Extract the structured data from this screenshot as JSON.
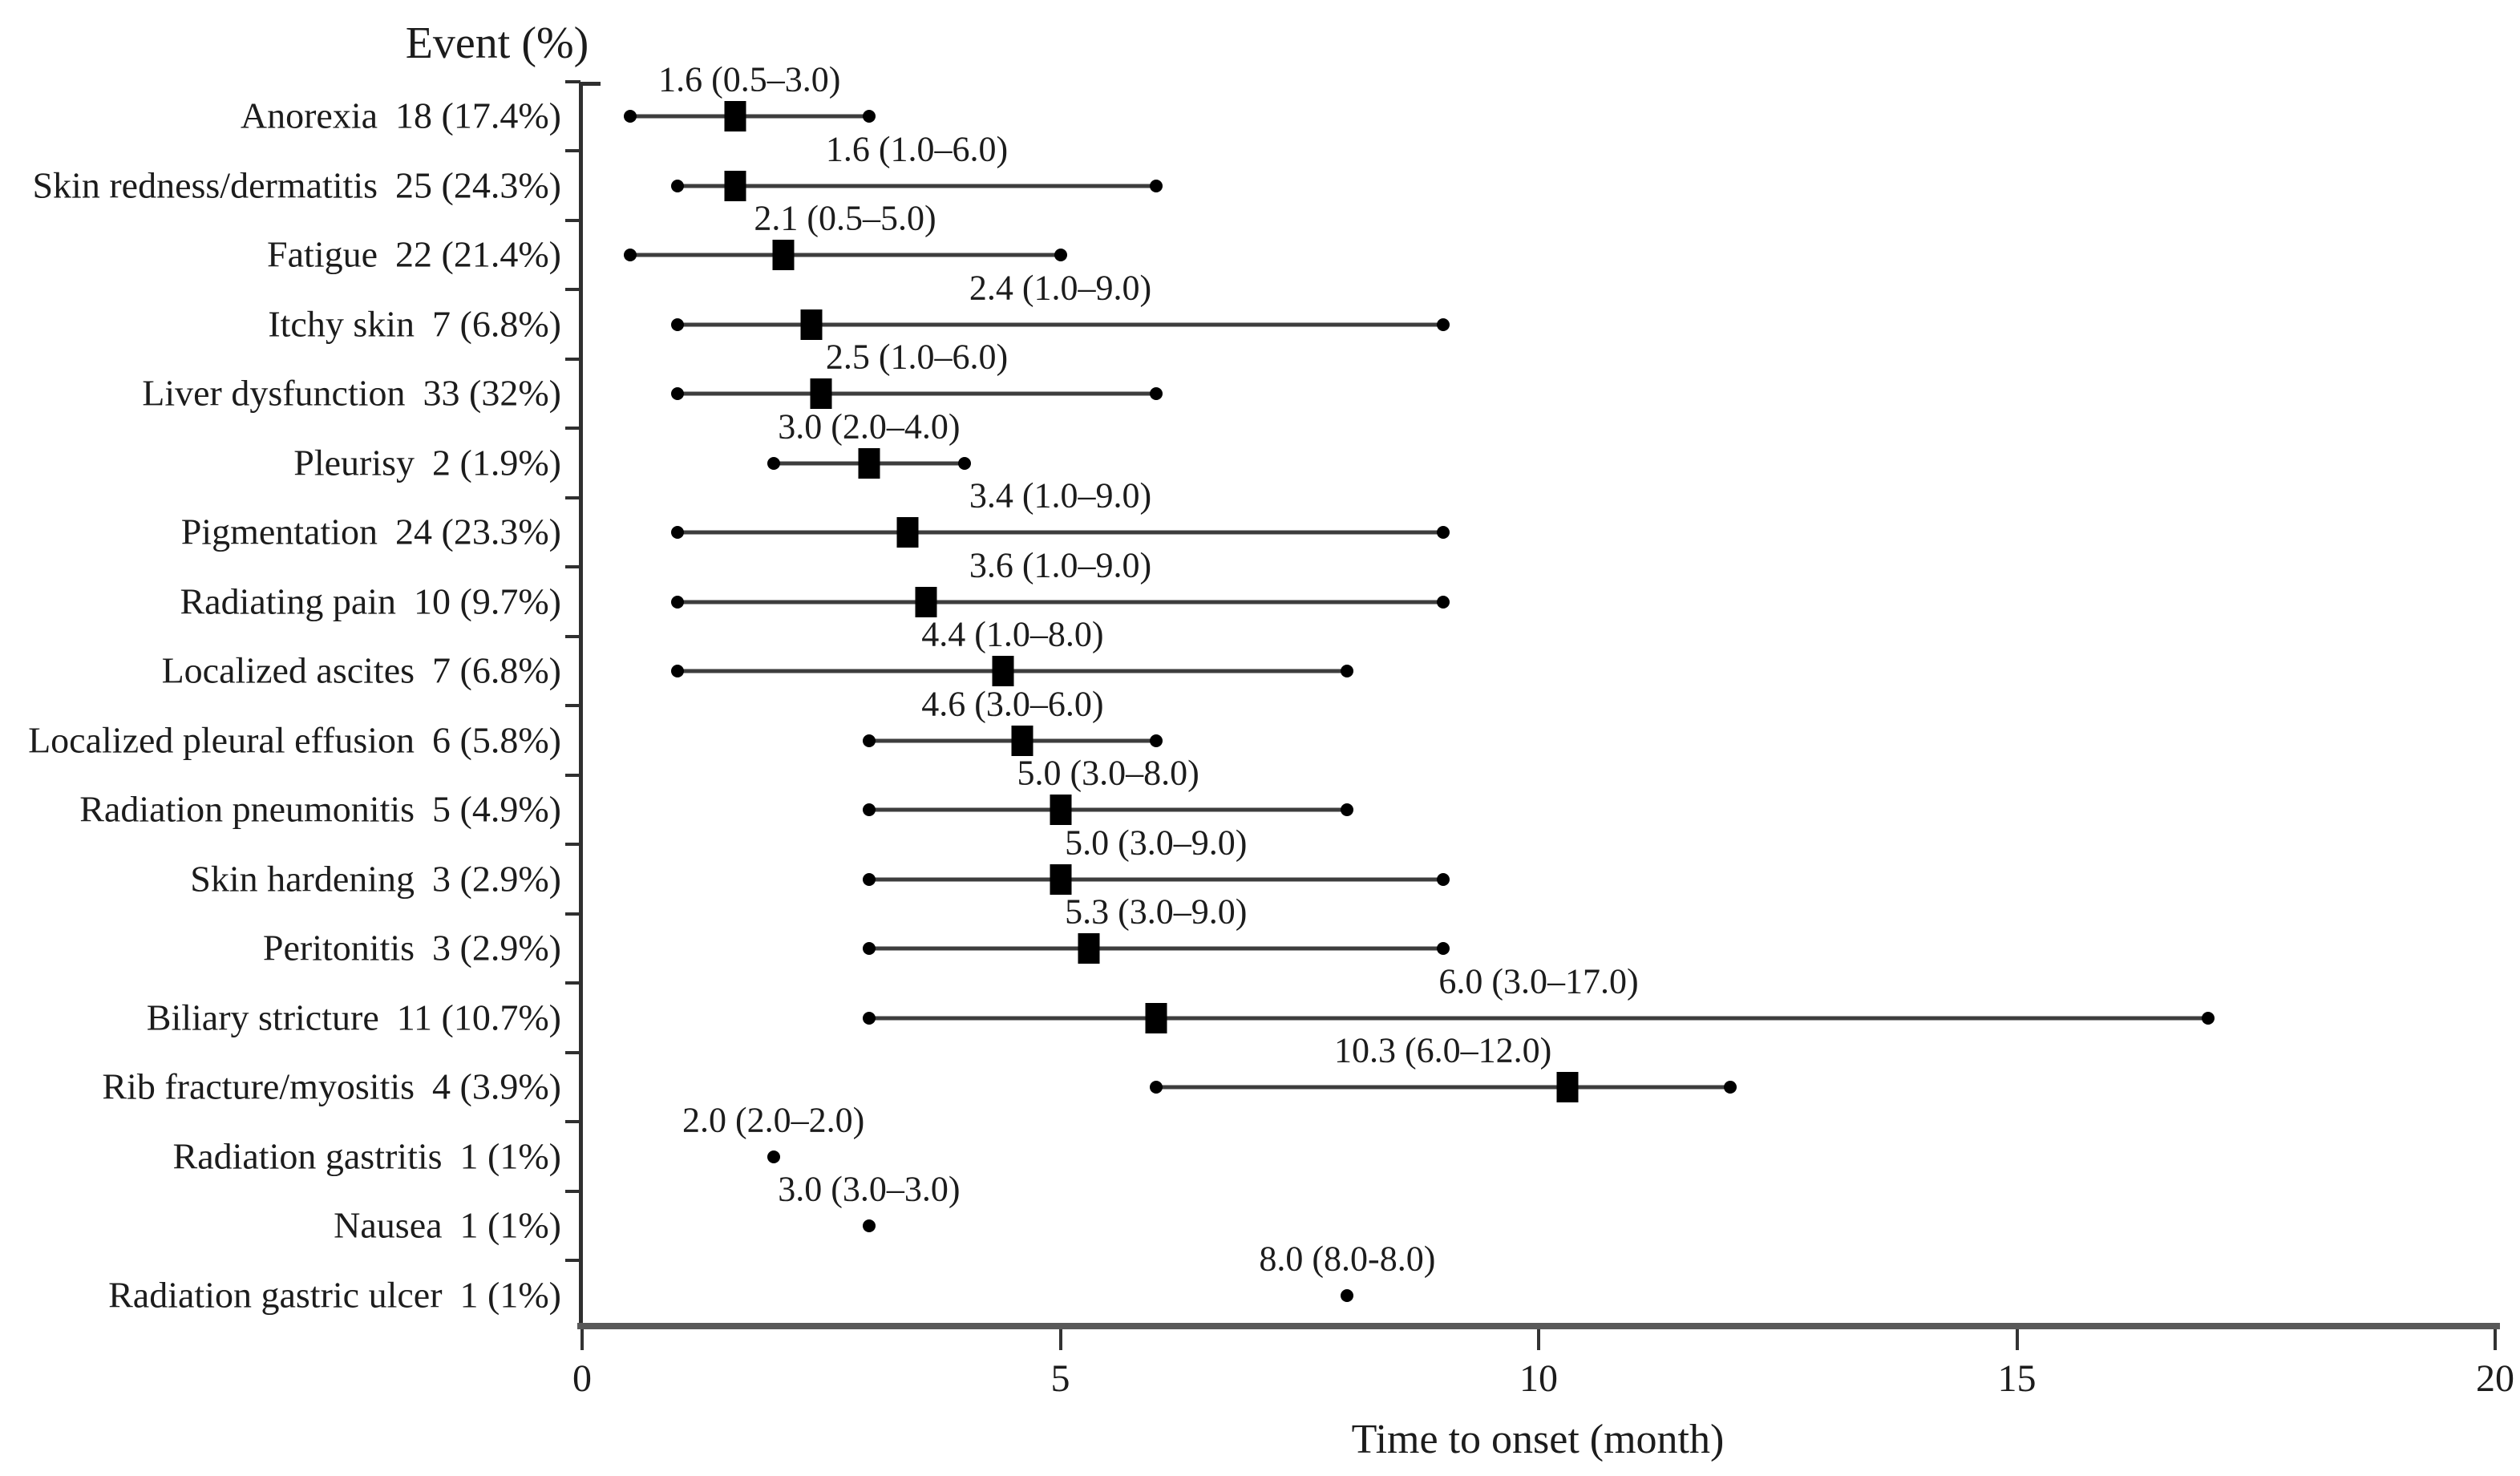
{
  "chart_data": {
    "type": "scatter",
    "subtype": "horizontal-forest-plot",
    "title": "Event (%)",
    "xlabel": "Time to onset (month)",
    "xlim": [
      0,
      20
    ],
    "xticks": [
      0,
      5,
      10,
      15,
      20
    ],
    "grid": false,
    "legend_position": "none",
    "marker_style": "black square = median, filled dots = range endpoints",
    "colors": {
      "text": "#1c1c1c",
      "line": "#3d3d3d",
      "marker": "#000000",
      "axis": "#595959"
    },
    "rows": [
      {
        "event": "Anorexia",
        "count": "18 (17.4%)",
        "median": 1.6,
        "low": 0.5,
        "high": 3.0,
        "label": "1.6 (0.5–3.0)"
      },
      {
        "event": "Skin redness/dermatitis",
        "count": "25 (24.3%)",
        "median": 1.6,
        "low": 1.0,
        "high": 6.0,
        "label": "1.6 (1.0–6.0)"
      },
      {
        "event": "Fatigue",
        "count": "22 (21.4%)",
        "median": 2.1,
        "low": 0.5,
        "high": 5.0,
        "label": "2.1 (0.5–5.0)"
      },
      {
        "event": "Itchy skin",
        "count": "7 (6.8%)",
        "median": 2.4,
        "low": 1.0,
        "high": 9.0,
        "label": "2.4 (1.0–9.0)"
      },
      {
        "event": "Liver dysfunction",
        "count": "33 (32%)",
        "median": 2.5,
        "low": 1.0,
        "high": 6.0,
        "label": "2.5 (1.0–6.0)"
      },
      {
        "event": "Pleurisy",
        "count": "2 (1.9%)",
        "median": 3.0,
        "low": 2.0,
        "high": 4.0,
        "label": "3.0 (2.0–4.0)"
      },
      {
        "event": "Pigmentation",
        "count": "24 (23.3%)",
        "median": 3.4,
        "low": 1.0,
        "high": 9.0,
        "label": "3.4 (1.0–9.0)"
      },
      {
        "event": "Radiating pain",
        "count": "10 (9.7%)",
        "median": 3.6,
        "low": 1.0,
        "high": 9.0,
        "label": "3.6 (1.0–9.0)"
      },
      {
        "event": "Localized ascites",
        "count": "7 (6.8%)",
        "median": 4.4,
        "low": 1.0,
        "high": 8.0,
        "label": "4.4 (1.0–8.0)"
      },
      {
        "event": "Localized pleural effusion",
        "count": "6 (5.8%)",
        "median": 4.6,
        "low": 3.0,
        "high": 6.0,
        "label": "4.6 (3.0–6.0)"
      },
      {
        "event": "Radiation pneumonitis",
        "count": "5 (4.9%)",
        "median": 5.0,
        "low": 3.0,
        "high": 8.0,
        "label": "5.0 (3.0–8.0)"
      },
      {
        "event": "Skin hardening",
        "count": "3 (2.9%)",
        "median": 5.0,
        "low": 3.0,
        "high": 9.0,
        "label": "5.0 (3.0–9.0)"
      },
      {
        "event": "Peritonitis",
        "count": "3 (2.9%)",
        "median": 5.3,
        "low": 3.0,
        "high": 9.0,
        "label": "5.3 (3.0–9.0)"
      },
      {
        "event": "Biliary stricture",
        "count": "11 (10.7%)",
        "median": 6.0,
        "low": 3.0,
        "high": 17.0,
        "label": "6.0 (3.0–17.0)"
      },
      {
        "event": "Rib fracture/myositis",
        "count": "4 (3.9%)",
        "median": 10.3,
        "low": 6.0,
        "high": 12.0,
        "label": "10.3 (6.0–12.0)"
      },
      {
        "event": "Radiation gastritis",
        "count": "1 (1%)",
        "median": 2.0,
        "low": 2.0,
        "high": 2.0,
        "label": "2.0 (2.0–2.0)"
      },
      {
        "event": "Nausea",
        "count": "1 (1%)",
        "median": 3.0,
        "low": 3.0,
        "high": 3.0,
        "label": "3.0 (3.0–3.0)"
      },
      {
        "event": "Radiation gastric ulcer",
        "count": "1 (1%)",
        "median": 8.0,
        "low": 8.0,
        "high": 8.0,
        "label": "8.0 (8.0-8.0)"
      }
    ]
  }
}
